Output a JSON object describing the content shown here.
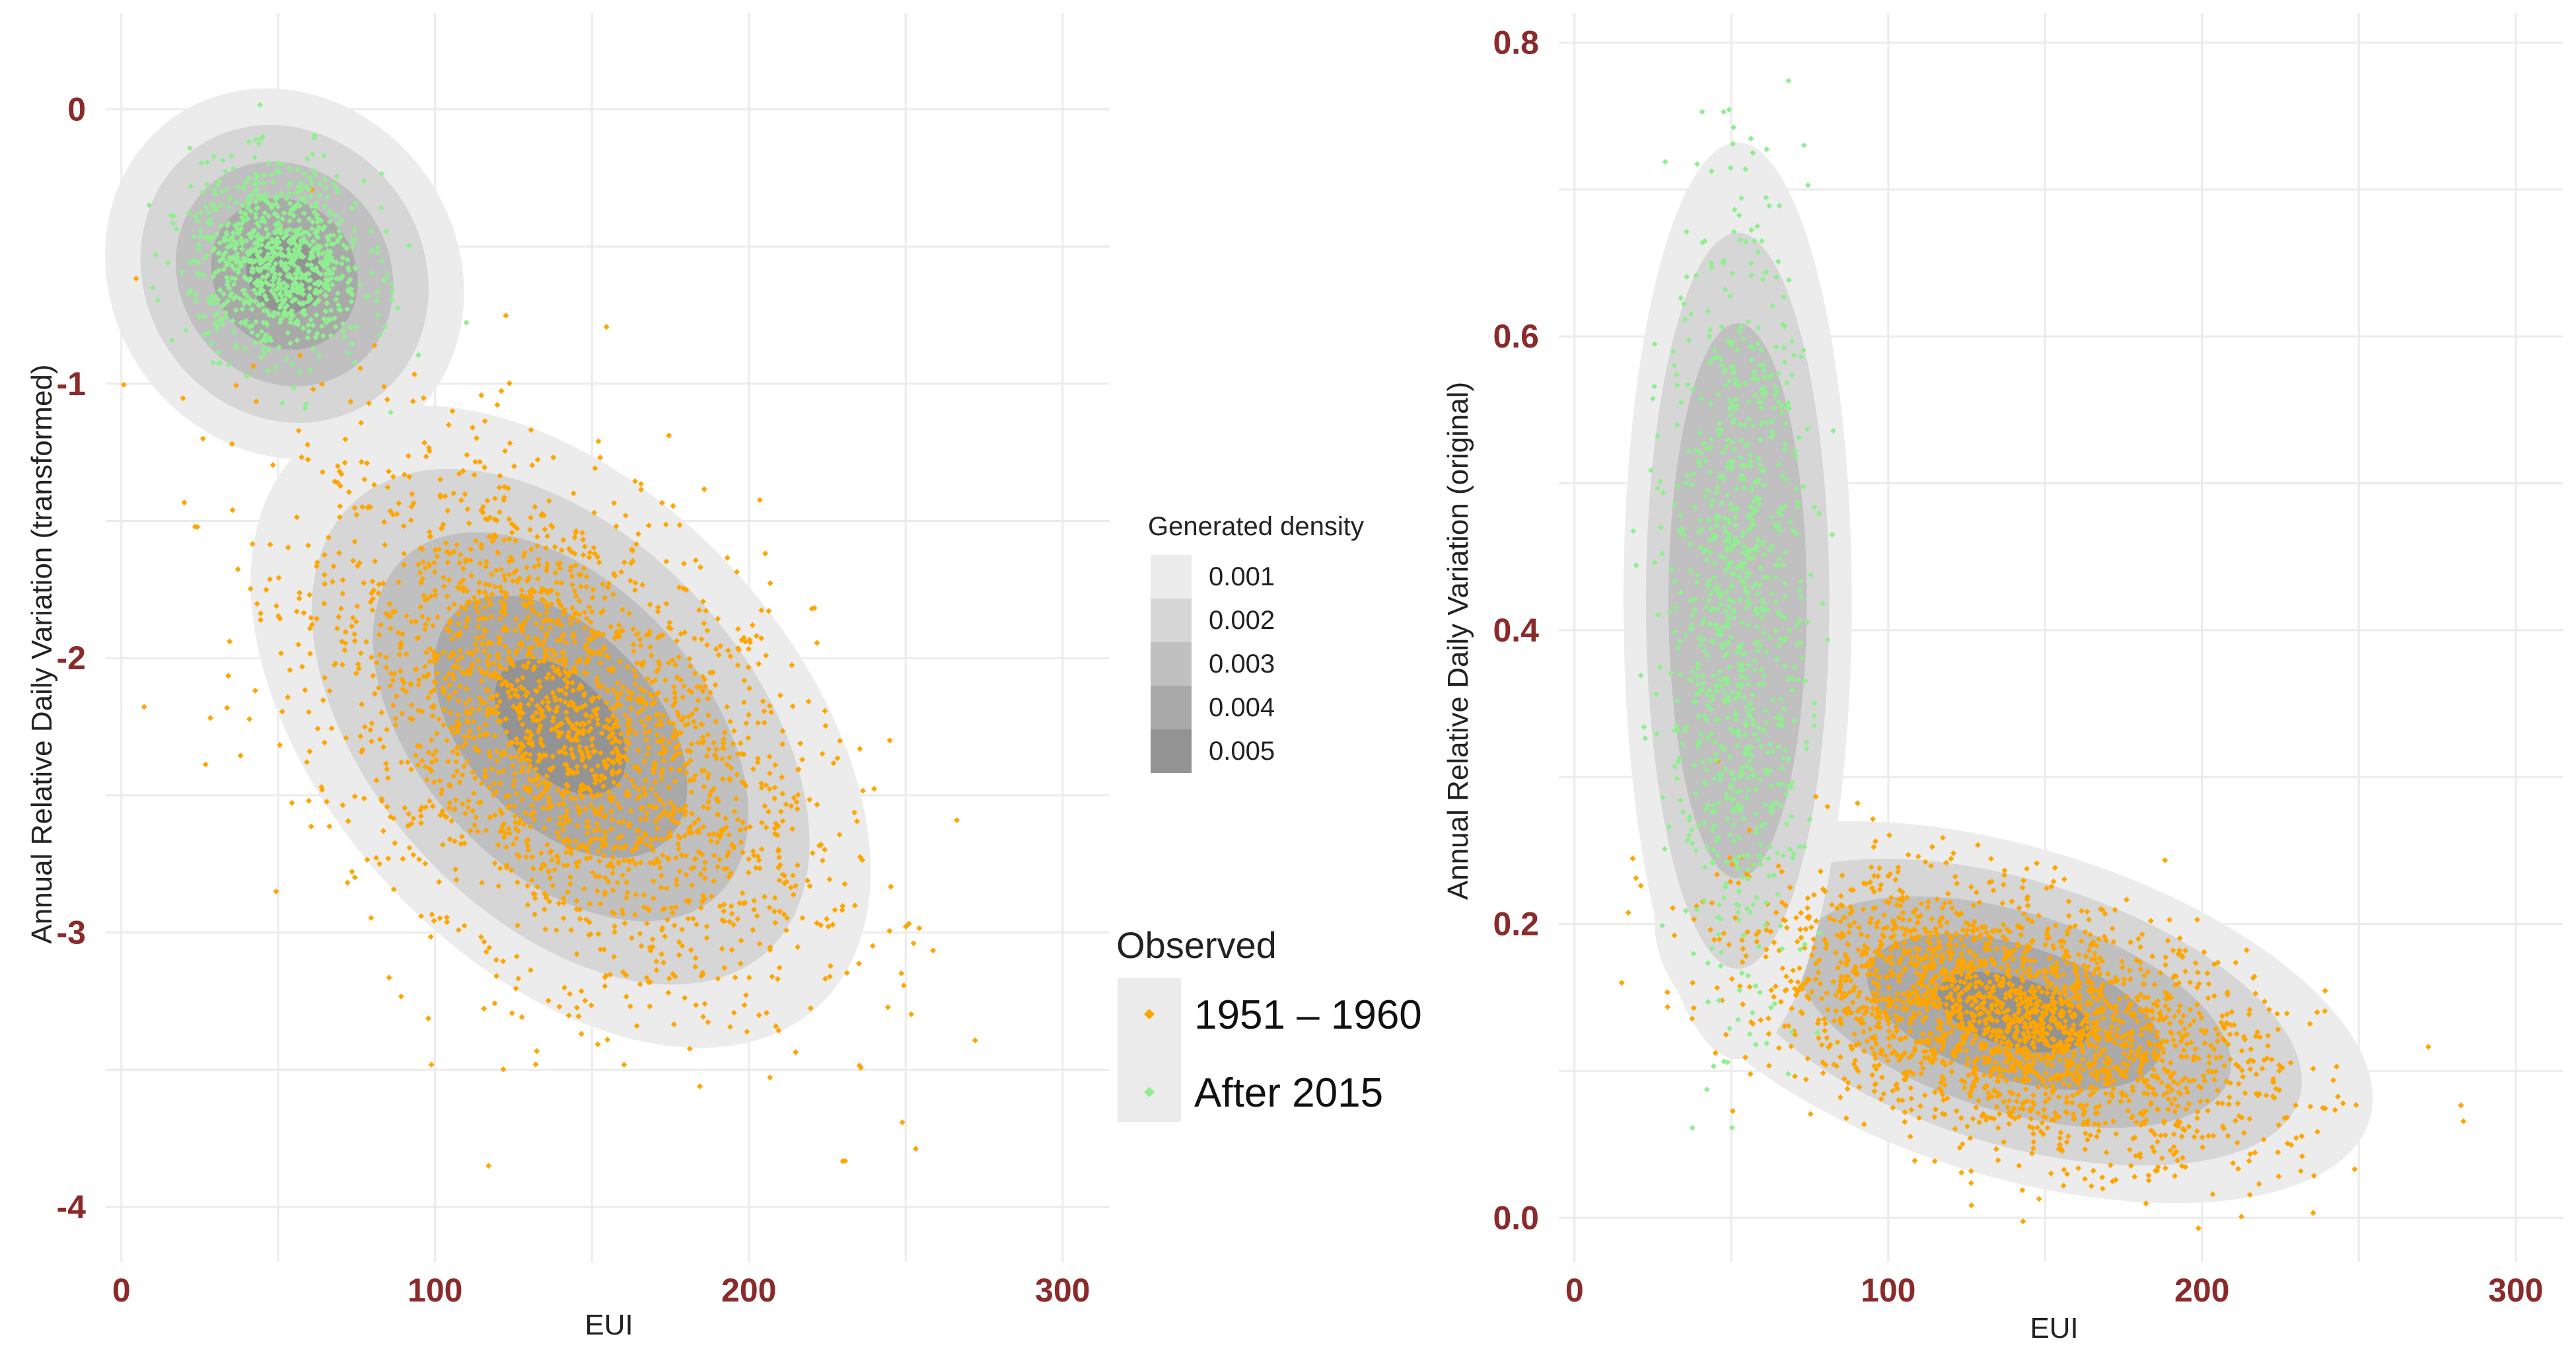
{
  "chart_data": [
    {
      "type": "scatter",
      "subtype": "scatter_with_density_contours",
      "xlabel": "EUI",
      "ylabel": "Annual Relative Daily Variation (transformed)",
      "xlim": [
        -5,
        315
      ],
      "ylim": [
        -4.2,
        0.35
      ],
      "xticks": [
        0,
        100,
        200,
        300
      ],
      "yticks": [
        0,
        -1,
        -2,
        -3,
        -4
      ],
      "xtick_labels": [
        "0",
        "100",
        "200",
        "300"
      ],
      "ytick_labels": [
        "0",
        "-1",
        "-2",
        "-3",
        "-4"
      ],
      "series": [
        {
          "name": "1951 – 1960",
          "color": "#ffa500",
          "count": 2400,
          "center": [
            140,
            -2.25
          ],
          "sd": [
            40,
            0.48
          ],
          "corr": -0.45
        },
        {
          "name": "After 2015",
          "color": "#90ee90",
          "count": 900,
          "center": [
            50,
            -0.55
          ],
          "sd": [
            14,
            0.17
          ],
          "corr": -0.1
        }
      ],
      "density_regions": [
        {
          "center": [
            140,
            -2.25
          ],
          "sd": [
            38,
            0.45
          ],
          "corr": -0.45,
          "weight": 1.0
        },
        {
          "center": [
            52,
            -0.6
          ],
          "sd": [
            22,
            0.26
          ],
          "corr": -0.1,
          "weight": 0.9
        }
      ]
    },
    {
      "type": "scatter",
      "subtype": "scatter_with_density_contours",
      "xlabel": "EUI",
      "ylabel": "Annual Relative Daily Variation (original)",
      "xlim": [
        -5,
        315
      ],
      "ylim": [
        -0.03,
        0.82
      ],
      "xticks": [
        0,
        100,
        200,
        300
      ],
      "yticks": [
        0.0,
        0.2,
        0.4,
        0.6,
        0.8
      ],
      "xtick_labels": [
        "0",
        "100",
        "200",
        "300"
      ],
      "ytick_labels": [
        "0.0",
        "0.2",
        "0.4",
        "0.6",
        "0.8"
      ],
      "series": [
        {
          "name": "1951 – 1960",
          "color": "#ffa500",
          "count": 2400,
          "center": [
            140,
            0.135
          ],
          "sd": [
            40,
            0.045
          ],
          "corr": -0.45
        },
        {
          "name": "After 2015",
          "color": "#90ee90",
          "count": 900,
          "center": [
            52,
            0.42
          ],
          "sd": [
            11,
            0.13
          ],
          "corr": 0.0
        }
      ],
      "density_regions": [
        {
          "center": [
            140,
            0.14
          ],
          "sd": [
            44,
            0.05
          ],
          "corr": -0.45,
          "weight": 1.0
        },
        {
          "center": [
            52,
            0.42
          ],
          "sd": [
            14,
            0.12
          ],
          "corr": 0.0,
          "weight": 0.55
        }
      ]
    }
  ],
  "legend": {
    "density_title": "Generated density",
    "density_levels": [
      "0.001",
      "0.002",
      "0.003",
      "0.004",
      "0.005"
    ],
    "density_colors": [
      "#ececec",
      "#d6d6d6",
      "#c0c0c0",
      "#a9a9a9",
      "#939393"
    ],
    "observed_title": "Observed",
    "observed_items": [
      {
        "label": "1951 – 1960",
        "color": "#ffa500"
      },
      {
        "label": "After 2015",
        "color": "#90ee90"
      }
    ]
  }
}
